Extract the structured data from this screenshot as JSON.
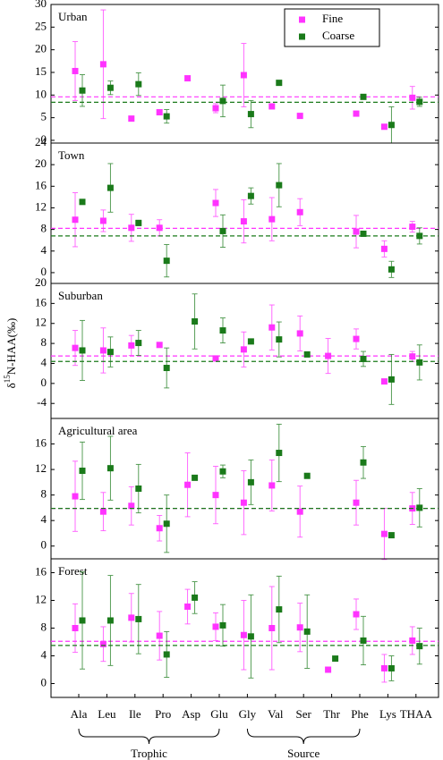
{
  "categories": [
    "Ala",
    "Leu",
    "Ile",
    "Pro",
    "Asp",
    "Glu",
    "Gly",
    "Val",
    "Ser",
    "Thr",
    "Phe",
    "Lys",
    "THAA"
  ],
  "x_group_labels": [
    "Trophic",
    "Source"
  ],
  "ylabel_parts": [
    "δ",
    "15",
    "N-HAA(‰)"
  ],
  "chart_data": [
    {
      "type": "errorbar",
      "title": "Urban",
      "ylim": [
        -0.6,
        30
      ],
      "yticks": [
        0,
        5,
        10,
        15,
        20,
        25,
        30
      ],
      "legend": true,
      "series": [
        {
          "name": "Fine",
          "color": "#ff33ff",
          "mean": 9.6,
          "values": [
            15.3,
            16.8,
            4.8,
            6.2,
            13.7,
            7.1,
            14.4,
            7.5,
            5.4,
            null,
            5.9,
            3.0,
            9.4
          ],
          "errors": [
            6.5,
            12,
            null,
            0.5,
            null,
            1,
            7,
            0.5,
            null,
            null,
            null,
            0.5,
            2.5
          ]
        },
        {
          "name": "Coarse",
          "color": "#1a7a1a",
          "mean": 8.4,
          "values": [
            11.0,
            11.6,
            12.4,
            5.3,
            null,
            8.7,
            5.8,
            12.7,
            null,
            null,
            9.6,
            3.4,
            8.5
          ],
          "errors": [
            3.5,
            1.5,
            2.5,
            1.5,
            null,
            3.5,
            3,
            0.5,
            null,
            null,
            0.3,
            4,
            1
          ]
        }
      ]
    },
    {
      "type": "errorbar",
      "title": "Town",
      "ylim": [
        -2,
        24
      ],
      "yticks": [
        0,
        4,
        8,
        12,
        16,
        20,
        24
      ],
      "series": [
        {
          "color": "#ff33ff",
          "mean": 8.2,
          "values": [
            9.8,
            9.6,
            8.3,
            8.3,
            null,
            12.9,
            9.5,
            9.9,
            11.2,
            null,
            7.6,
            4.4,
            8.5
          ],
          "errors": [
            5,
            2,
            2.5,
            1.5,
            null,
            2.5,
            4,
            4,
            2.5,
            null,
            3,
            1.5,
            1
          ]
        },
        {
          "color": "#1a7a1a",
          "mean": 6.8,
          "values": [
            13.1,
            15.7,
            9.2,
            2.2,
            null,
            7.7,
            14.2,
            16.2,
            null,
            null,
            7.2,
            0.6,
            6.8
          ],
          "errors": [
            null,
            4.5,
            0.5,
            3,
            null,
            3,
            1.5,
            4,
            null,
            null,
            null,
            1.5,
            1.5
          ]
        }
      ]
    },
    {
      "type": "errorbar",
      "title": "Suburban",
      "ylim": [
        -7,
        20
      ],
      "yticks": [
        -4,
        0,
        4,
        8,
        12,
        16,
        20
      ],
      "series": [
        {
          "color": "#ff33ff",
          "mean": 5.5,
          "values": [
            7.1,
            6.6,
            7.6,
            7.7,
            null,
            5.0,
            6.8,
            11.2,
            10.0,
            5.5,
            8.9,
            0.4,
            5.4
          ],
          "errors": [
            3.5,
            4.5,
            2,
            null,
            null,
            null,
            3.5,
            4.5,
            3.5,
            3.5,
            2,
            null,
            1
          ]
        },
        {
          "color": "#1a7a1a",
          "mean": 4.4,
          "values": [
            6.6,
            6.3,
            8.1,
            3.1,
            12.4,
            10.6,
            8.4,
            8.8,
            5.8,
            null,
            4.9,
            0.8,
            4.2
          ],
          "errors": [
            6,
            3,
            2.5,
            4,
            5.5,
            2.5,
            null,
            3.5,
            null,
            null,
            1.5,
            5,
            3.5
          ]
        }
      ]
    },
    {
      "type": "errorbar",
      "title": "Agricultural area",
      "ylim": [
        -2,
        20
      ],
      "yticks": [
        0,
        4,
        8,
        12,
        16
      ],
      "series": [
        {
          "color": "#ff33ff",
          "mean": 5.9,
          "values": [
            7.8,
            5.4,
            6.3,
            2.8,
            9.6,
            8.0,
            6.8,
            9.5,
            5.4,
            null,
            6.8,
            1.9,
            5.9
          ],
          "errors": [
            5.5,
            3,
            3,
            2,
            5,
            4.5,
            5,
            4,
            4,
            null,
            3.5,
            4,
            2.5
          ]
        },
        {
          "color": "#1a7a1a",
          "mean": 5.9,
          "values": [
            11.8,
            12.2,
            9.0,
            3.5,
            10.7,
            11.7,
            10.0,
            14.6,
            11.0,
            null,
            13.1,
            1.7,
            6.0
          ],
          "errors": [
            4.5,
            5,
            3.8,
            4.5,
            null,
            1,
            3.5,
            4.5,
            null,
            null,
            2.5,
            null,
            3
          ]
        }
      ]
    },
    {
      "type": "errorbar",
      "title": "Forest",
      "ylim": [
        -2,
        18
      ],
      "yticks": [
        0,
        4,
        8,
        12,
        16
      ],
      "series": [
        {
          "color": "#ff33ff",
          "mean": 6.1,
          "values": [
            8.0,
            5.7,
            9.5,
            6.9,
            11.1,
            8.2,
            7.0,
            8.0,
            8.1,
            2.0,
            10.0,
            2.2,
            6.2
          ],
          "errors": [
            3.5,
            2.5,
            3.5,
            3.5,
            2.5,
            2,
            5,
            6,
            3.5,
            null,
            2.2,
            2,
            2
          ]
        },
        {
          "color": "#1a7a1a",
          "mean": 5.5,
          "values": [
            9.1,
            9.1,
            9.3,
            4.2,
            12.4,
            8.4,
            6.8,
            10.7,
            7.5,
            3.6,
            6.2,
            2.2,
            5.4
          ],
          "errors": [
            7,
            6.5,
            5,
            3.3,
            2.3,
            3,
            6,
            4.8,
            5.3,
            null,
            3.5,
            1.8,
            2.6
          ]
        }
      ]
    }
  ]
}
